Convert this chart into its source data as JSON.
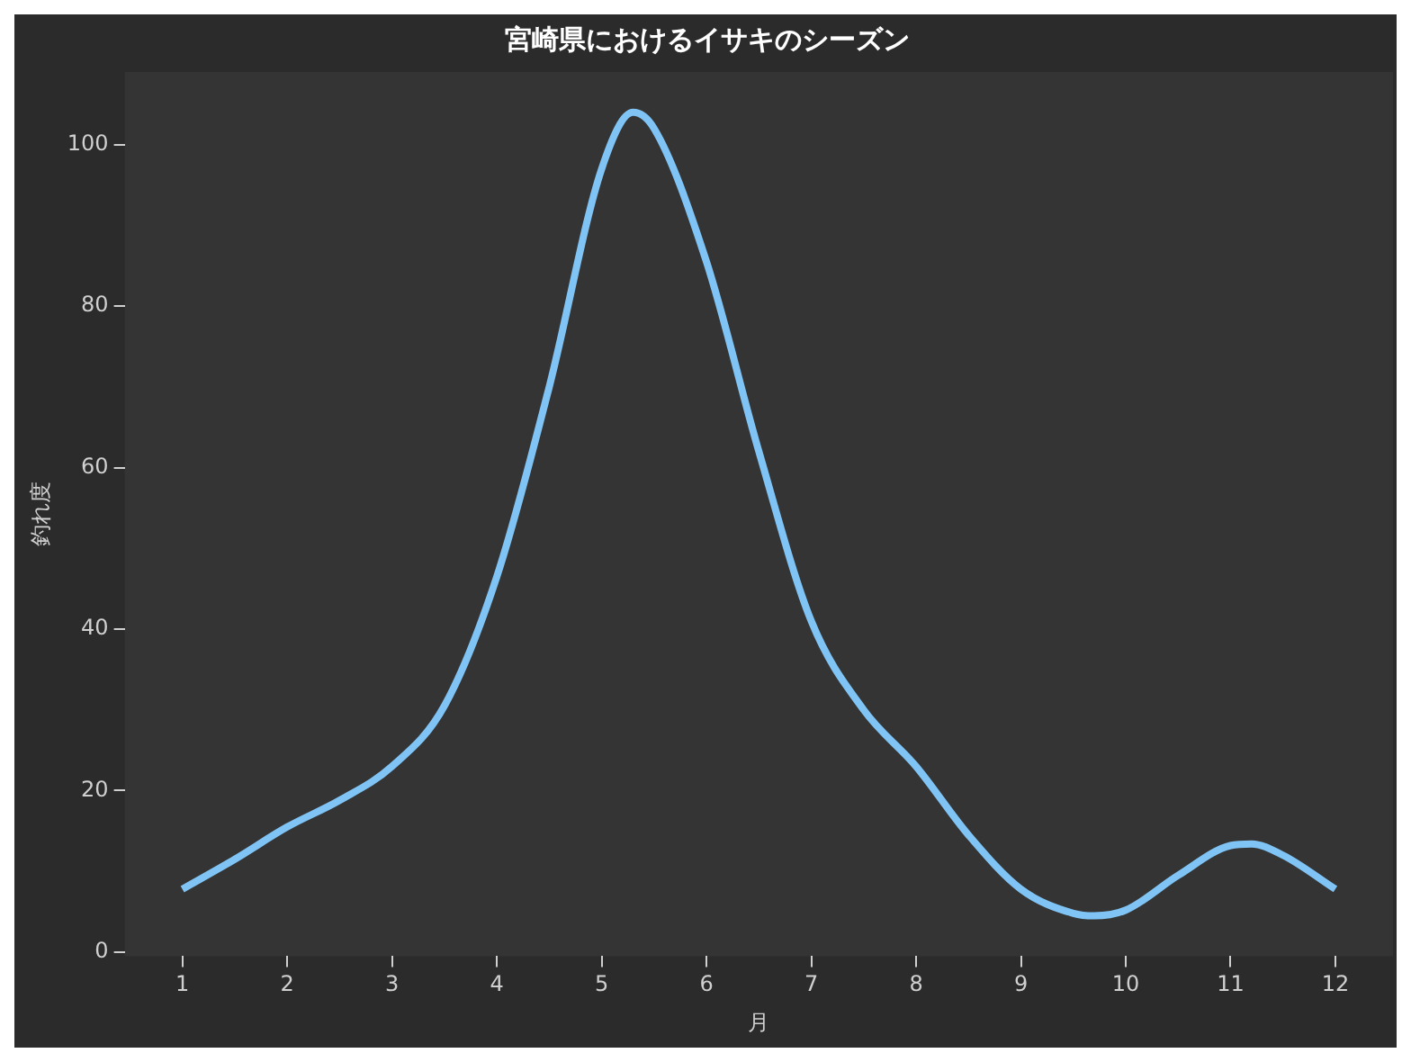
{
  "chart_data": {
    "type": "line",
    "title": "宮崎県におけるイサキのシーズン",
    "xlabel": "月",
    "ylabel": "釣れ度",
    "x": [
      1,
      1.5,
      2,
      2.5,
      3,
      3.5,
      4,
      4.5,
      5,
      5.3,
      5.5,
      6,
      6.5,
      7,
      7.5,
      8,
      8.5,
      9,
      9.5,
      9.7,
      10,
      10.5,
      11,
      11.2,
      11.5,
      12
    ],
    "series": [
      {
        "color": "#7fc4f5",
        "values": [
          7.8,
          11.5,
          15.5,
          18.8,
          23,
          30.5,
          46.5,
          70,
          97,
          104,
          102,
          85.5,
          62,
          41,
          30,
          23,
          14.5,
          7.8,
          4.8,
          4.5,
          5.2,
          9.5,
          13.2,
          13.4,
          12,
          7.8
        ]
      }
    ],
    "xlim": [
      0.45,
      12.55
    ],
    "ylim": [
      -0.5,
      109
    ],
    "xticks": [
      1,
      2,
      3,
      4,
      5,
      6,
      7,
      8,
      9,
      10,
      11,
      12
    ],
    "yticks": [
      0,
      20,
      40,
      60,
      80,
      100
    ],
    "grid": false,
    "legend": false,
    "marker": "none",
    "line_style": "solid"
  }
}
